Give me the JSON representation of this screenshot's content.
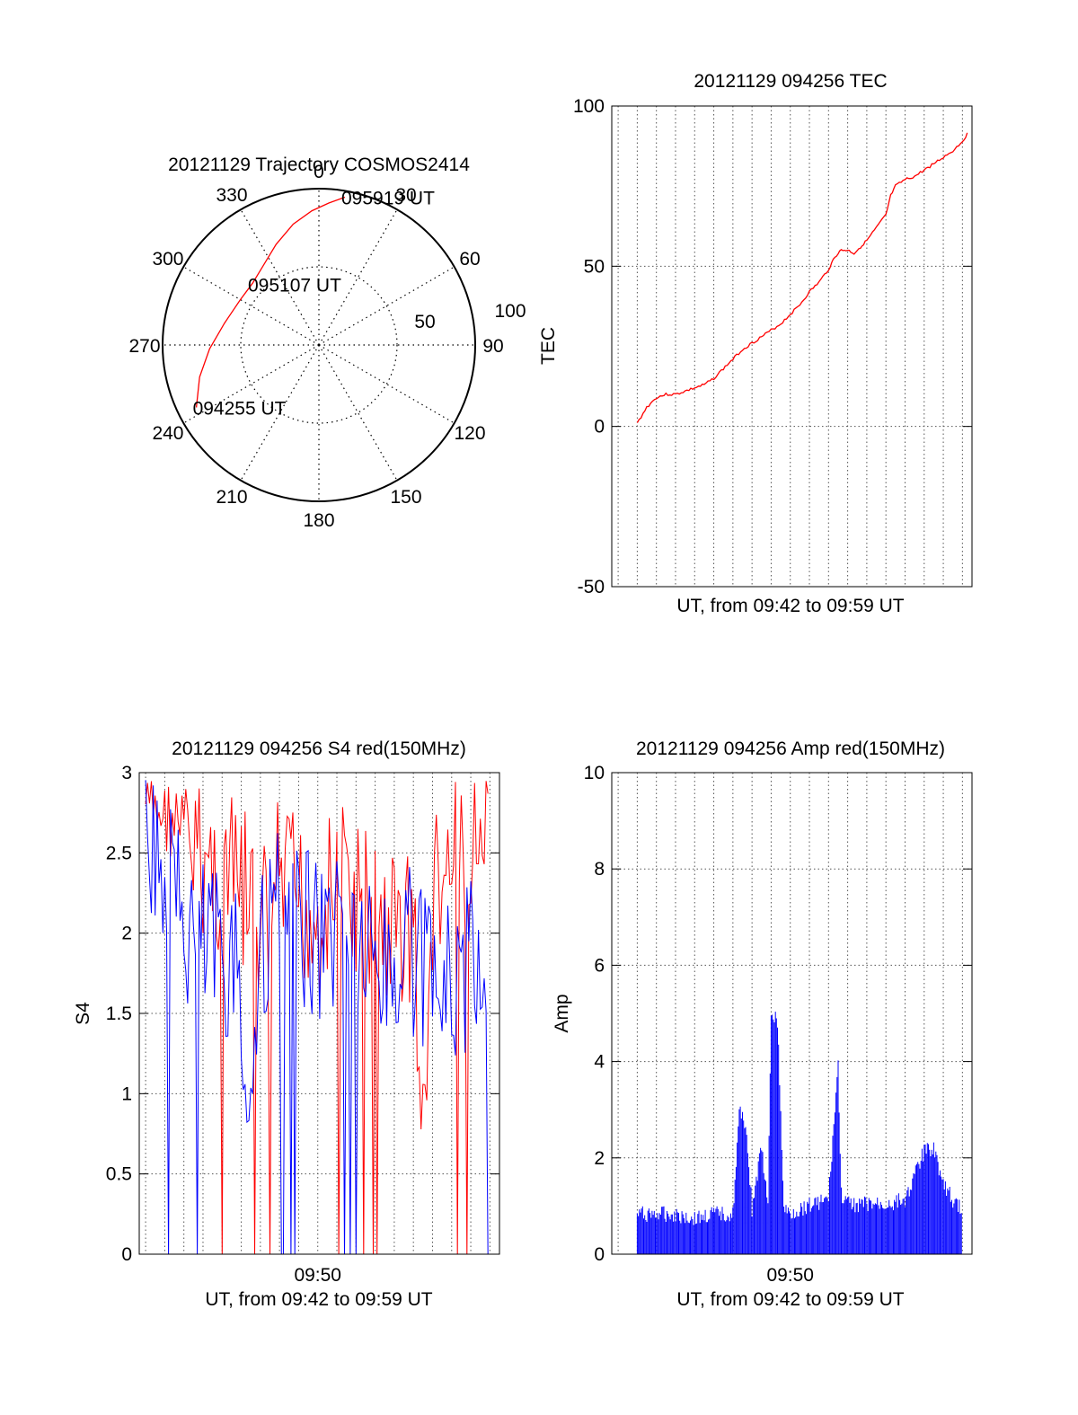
{
  "colors": {
    "red": "#ff0000",
    "blue": "#0000ff",
    "axis": "#000000",
    "grid": "#555555"
  },
  "chart_data": [
    {
      "id": "trajectory",
      "type": "polar",
      "title": "20121129 Trajectory COSMOS2414",
      "angle_labels": [
        "0",
        "30",
        "60",
        "90",
        "120",
        "150",
        "180",
        "210",
        "240",
        "270",
        "300",
        "330"
      ],
      "radius_labels": [
        "50",
        "100"
      ],
      "rlim": [
        0,
        100
      ],
      "grid": true,
      "track": [
        {
          "az": 243,
          "r": 88
        },
        {
          "az": 255,
          "r": 79
        },
        {
          "az": 268,
          "r": 70
        },
        {
          "az": 283,
          "r": 62
        },
        {
          "az": 300,
          "r": 58
        },
        {
          "az": 313,
          "r": 58
        },
        {
          "az": 325,
          "r": 62
        },
        {
          "az": 337,
          "r": 70
        },
        {
          "az": 348,
          "r": 79
        },
        {
          "az": 357,
          "r": 86
        },
        {
          "az": 4,
          "r": 91
        },
        {
          "az": 10,
          "r": 96
        }
      ],
      "annotations": [
        {
          "text": "094255 UT",
          "az": 243,
          "r": 88
        },
        {
          "text": "095107 UT",
          "az": 312,
          "r": 58
        },
        {
          "text": "095919 UT",
          "az": 10,
          "r": 96
        }
      ]
    },
    {
      "id": "tec",
      "type": "line",
      "title": "20121129 094256 TEC",
      "xlabel": "UT, from 09:42 to 09:59 UT",
      "ylabel": "TEC",
      "xlim": [
        "09:40:40",
        "09:59:30"
      ],
      "ylim": [
        -50,
        100
      ],
      "yticks": [
        -50,
        0,
        50,
        100
      ],
      "grid": true,
      "series": [
        {
          "color": "#ff0000",
          "x": [
            "09:42:00",
            "09:42:30",
            "09:43:00",
            "09:43:30",
            "09:44:00",
            "09:44:30",
            "09:45:00",
            "09:45:30",
            "09:46:00",
            "09:46:30",
            "09:47:00",
            "09:47:30",
            "09:48:00",
            "09:48:30",
            "09:49:00",
            "09:49:30",
            "09:50:00",
            "09:50:30",
            "09:51:00",
            "09:51:30",
            "09:52:00",
            "09:52:20",
            "09:52:40",
            "09:53:00",
            "09:53:20",
            "09:53:40",
            "09:54:00",
            "09:54:30",
            "09:55:00",
            "09:55:15",
            "09:55:30",
            "09:56:00",
            "09:56:30",
            "09:57:00",
            "09:57:30",
            "09:58:00",
            "09:58:30",
            "09:59:00",
            "09:59:20"
          ],
          "values": [
            1,
            6,
            9,
            10,
            10,
            11,
            12,
            13,
            15,
            18,
            21,
            24,
            26,
            28,
            30,
            32,
            35,
            38,
            42,
            45,
            49,
            53,
            55,
            55,
            54,
            56,
            58,
            62,
            66,
            72,
            75,
            77,
            78,
            80,
            82,
            84,
            86,
            89,
            92
          ]
        }
      ]
    },
    {
      "id": "s4",
      "type": "line",
      "title": "20121129 094256 S4 red(150MHz)",
      "xlabel": "UT, from 09:42 to 09:59 UT",
      "ylabel": "S4",
      "xlim": [
        "09:40:40",
        "09:59:30"
      ],
      "ylim": [
        0,
        3
      ],
      "yticks": [
        0,
        0.5,
        1,
        1.5,
        2,
        2.5,
        3
      ],
      "xticks": [
        "09:50"
      ],
      "grid": true,
      "series": [
        {
          "color": "#ff0000",
          "x": [
            "09:41:00",
            "09:42:30",
            "09:43:30",
            "09:44:30",
            "09:45:30",
            "09:46:30",
            "09:47:00",
            "09:48:00",
            "09:49:00",
            "09:50:00",
            "09:51:00",
            "09:52:00",
            "09:53:00",
            "09:54:00",
            "09:55:00",
            "09:55:30",
            "09:56:00",
            "09:57:00",
            "09:58:00",
            "09:59:00"
          ],
          "values": [
            2.8,
            2.7,
            2.5,
            2.4,
            2.3,
            2.2,
            2.0,
            2.3,
            2.2,
            2.1,
            2.3,
            2.2,
            2.1,
            2.0,
            2.1,
            0.6,
            2.2,
            2.4,
            2.5,
            2.6
          ]
        },
        {
          "color": "#0000ff",
          "x": [
            "09:41:00",
            "09:42:30",
            "09:43:30",
            "09:44:30",
            "09:45:30",
            "09:46:30",
            "09:47:00",
            "09:48:00",
            "09:49:00",
            "09:50:00",
            "09:51:00",
            "09:52:00",
            "09:53:00",
            "09:54:00",
            "09:55:00",
            "09:56:00",
            "09:57:00",
            "09:58:00",
            "09:59:00"
          ],
          "values": [
            2.6,
            2.2,
            2.0,
            1.9,
            1.9,
            0.9,
            2.0,
            2.1,
            2.0,
            2.0,
            2.1,
            2.0,
            1.8,
            1.8,
            1.9,
            1.6,
            1.7,
            1.8,
            1.9
          ]
        }
      ]
    },
    {
      "id": "amp",
      "type": "line",
      "title": "20121129 094256 Amp red(150MHz)",
      "xlabel": "UT, from 09:42 to 09:59 UT",
      "ylabel": "Amp",
      "xlim": [
        "09:40:40",
        "09:59:30"
      ],
      "ylim": [
        0,
        10
      ],
      "yticks": [
        0,
        2,
        4,
        6,
        8,
        10
      ],
      "xticks": [
        "09:50"
      ],
      "grid": true,
      "series": [
        {
          "color": "#0000ff",
          "x": [
            "09:42:00",
            "09:43:00",
            "09:44:00",
            "09:45:00",
            "09:46:00",
            "09:47:00",
            "09:47:20",
            "09:47:40",
            "09:48:00",
            "09:48:30",
            "09:48:50",
            "09:49:00",
            "09:49:20",
            "09:49:40",
            "09:50:00",
            "09:50:30",
            "09:51:00",
            "09:52:00",
            "09:52:30",
            "09:52:40",
            "09:53:00",
            "09:54:00",
            "09:55:00",
            "09:56:00",
            "09:57:00",
            "09:57:30",
            "09:58:00",
            "09:58:30",
            "09:59:00"
          ],
          "values": [
            0.9,
            0.9,
            0.9,
            0.8,
            0.9,
            0.9,
            3.0,
            2.8,
            1.0,
            2.3,
            1.0,
            5.1,
            4.9,
            1.0,
            0.9,
            1.0,
            1.1,
            1.2,
            4.0,
            1.3,
            1.1,
            1.1,
            1.1,
            1.2,
            2.2,
            2.3,
            1.5,
            1.2,
            1.0
          ]
        }
      ]
    }
  ]
}
